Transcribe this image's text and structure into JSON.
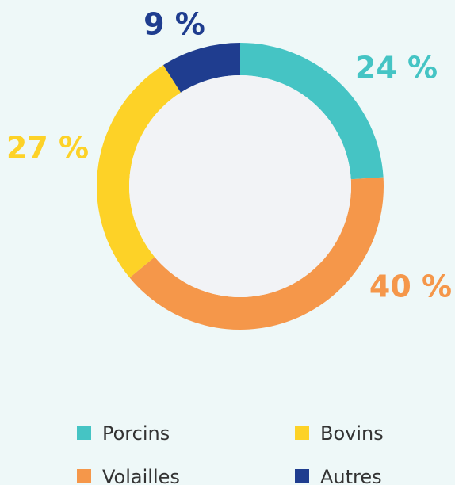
{
  "chart_data": {
    "type": "pie",
    "categories": [
      "Porcins",
      "Volailles",
      "Bovins",
      "Autres"
    ],
    "values": [
      24,
      40,
      27,
      9
    ],
    "value_labels": [
      "24 %",
      "40 %",
      "27 %",
      "9 %"
    ],
    "colors": [
      "#45c4c4",
      "#f5974a",
      "#fdd227",
      "#1f3d8f"
    ],
    "donut": true
  }
}
